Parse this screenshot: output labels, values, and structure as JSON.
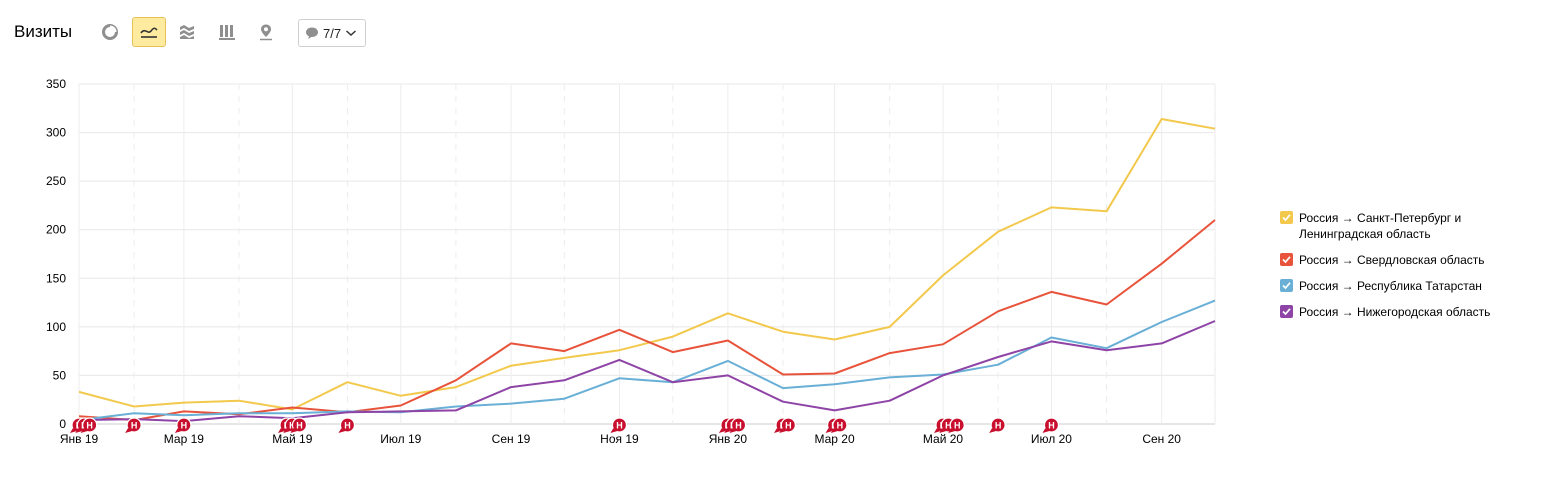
{
  "header": {
    "title": "Визиты",
    "notes_count": "7/7",
    "toolbar_icons": [
      "pie-chart-icon",
      "line-chart-icon",
      "area-chart-icon",
      "column-chart-icon",
      "map-pin-icon"
    ]
  },
  "chart_data": {
    "type": "line",
    "x": [
      "2019-01",
      "2019-02",
      "2019-03",
      "2019-04",
      "2019-05",
      "2019-06",
      "2019-07",
      "2019-08",
      "2019-09",
      "2019-10",
      "2019-11",
      "2019-12",
      "2020-01",
      "2020-02",
      "2020-03",
      "2020-04",
      "2020-05",
      "2020-06",
      "2020-07",
      "2020-08",
      "2020-09",
      "2020-10"
    ],
    "x_tick_labels": [
      {
        "x": "2019-01",
        "label": "Янв 19"
      },
      {
        "x": "2019-03",
        "label": "Мар 19"
      },
      {
        "x": "2019-05",
        "label": "Май 19"
      },
      {
        "x": "2019-07",
        "label": "Июл 19"
      },
      {
        "x": "2019-09",
        "label": "Сен 19"
      },
      {
        "x": "2019-11",
        "label": "Ноя 19"
      },
      {
        "x": "2020-01",
        "label": "Янв 20"
      },
      {
        "x": "2020-03",
        "label": "Мар 20"
      },
      {
        "x": "2020-05",
        "label": "Май 20"
      },
      {
        "x": "2020-07",
        "label": "Июл 20"
      },
      {
        "x": "2020-09",
        "label": "Сен 20"
      }
    ],
    "ylim": [
      0,
      350
    ],
    "y_ticks": [
      0,
      50,
      100,
      150,
      200,
      250,
      300,
      350
    ],
    "grid": true,
    "legend_position": "right",
    "series": [
      {
        "name": "Россия → Санкт-Петербург и Ленинградская область",
        "color": "#f2c94c",
        "values": [
          33,
          18,
          22,
          24,
          15,
          43,
          29,
          38,
          60,
          68,
          76,
          90,
          114,
          95,
          87,
          100,
          153,
          198,
          223,
          219,
          314,
          304
        ]
      },
      {
        "name": "Россия → Свердловская область",
        "color": "#e8533b",
        "values": [
          8,
          4,
          13,
          10,
          17,
          12,
          19,
          45,
          83,
          75,
          97,
          74,
          86,
          51,
          52,
          73,
          82,
          116,
          136,
          123,
          165,
          210
        ]
      },
      {
        "name": "Россия → Республика Татарстан",
        "color": "#69afd6",
        "values": [
          4,
          11,
          9,
          11,
          11,
          13,
          12,
          18,
          21,
          26,
          47,
          43,
          65,
          37,
          41,
          48,
          51,
          61,
          89,
          78,
          105,
          127
        ]
      },
      {
        "name": "Россия → Нижегородская область",
        "color": "#8e44a6",
        "values": [
          4,
          5,
          3,
          8,
          6,
          12,
          13,
          14,
          38,
          45,
          66,
          43,
          50,
          23,
          14,
          24,
          50,
          69,
          85,
          76,
          83,
          106
        ]
      }
    ],
    "annotation_label": "Н",
    "annotation_markers": [
      "2019-01-01",
      "2019-01-04",
      "2019-01-07",
      "2019-02-01",
      "2019-03-01",
      "2019-04-28",
      "2019-05-01",
      "2019-05-05",
      "2019-06-01",
      "2019-11-01",
      "2020-01-01",
      "2020-01-04",
      "2020-01-07",
      "2020-02-01",
      "2020-02-04",
      "2020-03-01",
      "2020-03-04",
      "2020-05-01",
      "2020-05-04",
      "2020-05-09",
      "2020-06-01",
      "2020-07-01"
    ]
  }
}
